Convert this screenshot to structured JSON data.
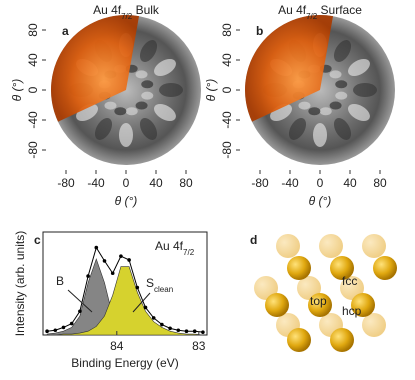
{
  "chart_data": [
    {
      "type": "polar-map",
      "panel": "a",
      "title_parts": [
        "Au 4f",
        "7/2",
        " Bulk"
      ],
      "xlabel": "θ (°)",
      "ylabel": "θ (°)",
      "xlim": [
        -100,
        100
      ],
      "ylim": [
        -100,
        100
      ],
      "xticks": [
        -80,
        -40,
        0,
        40,
        80
      ],
      "yticks": [
        -80,
        -40,
        0,
        40,
        80
      ]
    },
    {
      "type": "polar-map",
      "panel": "b",
      "title_parts": [
        "Au 4f",
        "7/2",
        " Surface"
      ],
      "xlabel": "θ (°)",
      "ylabel": "θ (°)",
      "xlim": [
        -100,
        100
      ],
      "ylim": [
        -100,
        100
      ],
      "xticks": [
        -80,
        -40,
        0,
        40,
        80
      ],
      "yticks": [
        -80,
        -40,
        0,
        40,
        80
      ]
    },
    {
      "type": "spectrum",
      "panel": "c",
      "label_parts": [
        "Au 4f",
        "7/2"
      ],
      "xlabel": "Binding Energy (eV)",
      "ylabel": "Intensity (arb. units)",
      "xlim": [
        84.9,
        82.9
      ],
      "ylim": [
        0,
        100
      ],
      "xticks": [
        84,
        83
      ],
      "x": [
        84.85,
        84.75,
        84.65,
        84.55,
        84.45,
        84.35,
        84.25,
        84.15,
        84.05,
        83.95,
        83.85,
        83.75,
        83.65,
        83.55,
        83.45,
        83.35,
        83.25,
        83.15,
        83.05,
        82.95
      ],
      "series": [
        {
          "name": "B",
          "color": "#858585",
          "values": [
            1,
            2,
            4,
            8,
            20,
            55,
            80,
            55,
            20,
            8,
            4,
            2,
            1,
            1,
            0,
            0,
            0,
            0,
            0,
            0
          ]
        },
        {
          "name": "S",
          "name_sub": "clean",
          "color": "#d6d22e",
          "values": [
            0,
            0,
            1,
            1,
            2,
            4,
            9,
            20,
            42,
            72,
            72,
            45,
            25,
            14,
            8,
            4,
            2,
            1,
            1,
            0
          ]
        },
        {
          "color": "#000000",
          "values": [
            4,
            5,
            8,
            12,
            25,
            62,
            92,
            78,
            65,
            83,
            79,
            50,
            29,
            18,
            11,
            7,
            5,
            4,
            4,
            3
          ]
        }
      ]
    }
  ],
  "diagram": {
    "panel": "d",
    "labels": [
      "top",
      "fcc",
      "hcp"
    ]
  }
}
